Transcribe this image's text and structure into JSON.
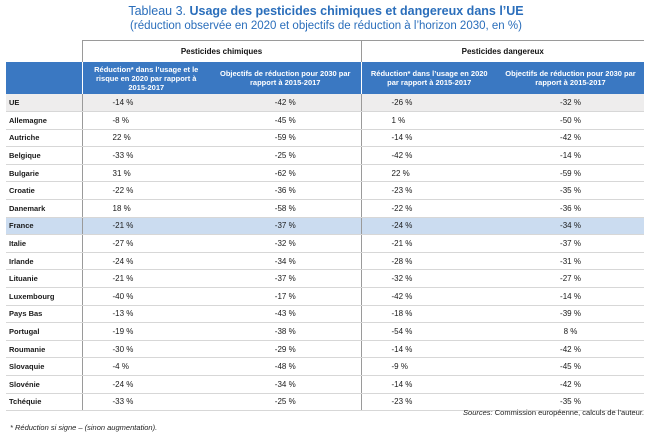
{
  "title": {
    "prefix": "Tableau 3. ",
    "main": "Usage des pesticides chimiques et dangereux dans l’UE",
    "subtitle": "(réduction observée en 2020 et objectifs de réduction à l’horizon 2030, en %)"
  },
  "groups": {
    "chemical": "Pesticides chimiques",
    "dangerous": "Pesticides dangereux"
  },
  "columns": {
    "chem_reduction": "Réduction* dans l’usage et le risque en 2020 par rapport à 2015-2017",
    "chem_target": "Objectifs de réduction pour 2030 par rapport à 2015-2017",
    "dang_reduction": "Réduction* dans l’usage en 2020 par rapport à 2015-2017",
    "dang_target": "Objectifs de réduction pour 2030 par rapport à 2015-2017"
  },
  "rows": [
    {
      "name": "UE",
      "c1": "-14 %",
      "c2": "-42 %",
      "c3": "-26 %",
      "c4": "-32 %"
    },
    {
      "name": "Allemagne",
      "c1": "-8 %",
      "c2": "-45 %",
      "c3": "1 %",
      "c4": "-50 %"
    },
    {
      "name": "Autriche",
      "c1": "22 %",
      "c2": "-59 %",
      "c3": "-14 %",
      "c4": "-42 %"
    },
    {
      "name": "Belgique",
      "c1": "-33 %",
      "c2": "-25 %",
      "c3": "-42 %",
      "c4": "-14 %"
    },
    {
      "name": "Bulgarie",
      "c1": "31 %",
      "c2": "-62 %",
      "c3": "22 %",
      "c4": "-59 %"
    },
    {
      "name": "Croatie",
      "c1": "-22 %",
      "c2": "-36 %",
      "c3": "-23 %",
      "c4": "-35 %"
    },
    {
      "name": "Danemark",
      "c1": "18 %",
      "c2": "-58 %",
      "c3": "-22 %",
      "c4": "-36 %"
    },
    {
      "name": "France",
      "c1": "-21 %",
      "c2": "-37 %",
      "c3": "-24 %",
      "c4": "-34 %"
    },
    {
      "name": "Italie",
      "c1": "-27 %",
      "c2": "-32 %",
      "c3": "-21 %",
      "c4": "-37 %"
    },
    {
      "name": "Irlande",
      "c1": "-24 %",
      "c2": "-34 %",
      "c3": "-28 %",
      "c4": "-31 %"
    },
    {
      "name": "Lituanie",
      "c1": "-21 %",
      "c2": "-37 %",
      "c3": "-32 %",
      "c4": "-27 %"
    },
    {
      "name": "Luxembourg",
      "c1": "-40 %",
      "c2": "-17 %",
      "c3": "-42 %",
      "c4": "-14 %"
    },
    {
      "name": "Pays Bas",
      "c1": "-13 %",
      "c2": "-43 %",
      "c3": "-18 %",
      "c4": "-39 %"
    },
    {
      "name": "Portugal",
      "c1": "-19 %",
      "c2": "-38 %",
      "c3": "-54 %",
      "c4": "8 %"
    },
    {
      "name": "Roumanie",
      "c1": "-30 %",
      "c2": "-29 %",
      "c3": "-14 %",
      "c4": "-42 %"
    },
    {
      "name": "Slovaquie",
      "c1": "-4 %",
      "c2": "-48 %",
      "c3": "-9 %",
      "c4": "-45 %"
    },
    {
      "name": "Slovénie",
      "c1": "-24 %",
      "c2": "-34 %",
      "c3": "-14 %",
      "c4": "-42 %"
    },
    {
      "name": "Tchéquie",
      "c1": "-33 %",
      "c2": "-25 %",
      "c3": "-23 %",
      "c4": "-35 %"
    }
  ],
  "highlight_row": "France",
  "sources": {
    "label": "Sources:",
    "text": " Commission européenne, calculs de l’auteur."
  },
  "footnote": "* Réduction si signe – (sinon augmentation)."
}
